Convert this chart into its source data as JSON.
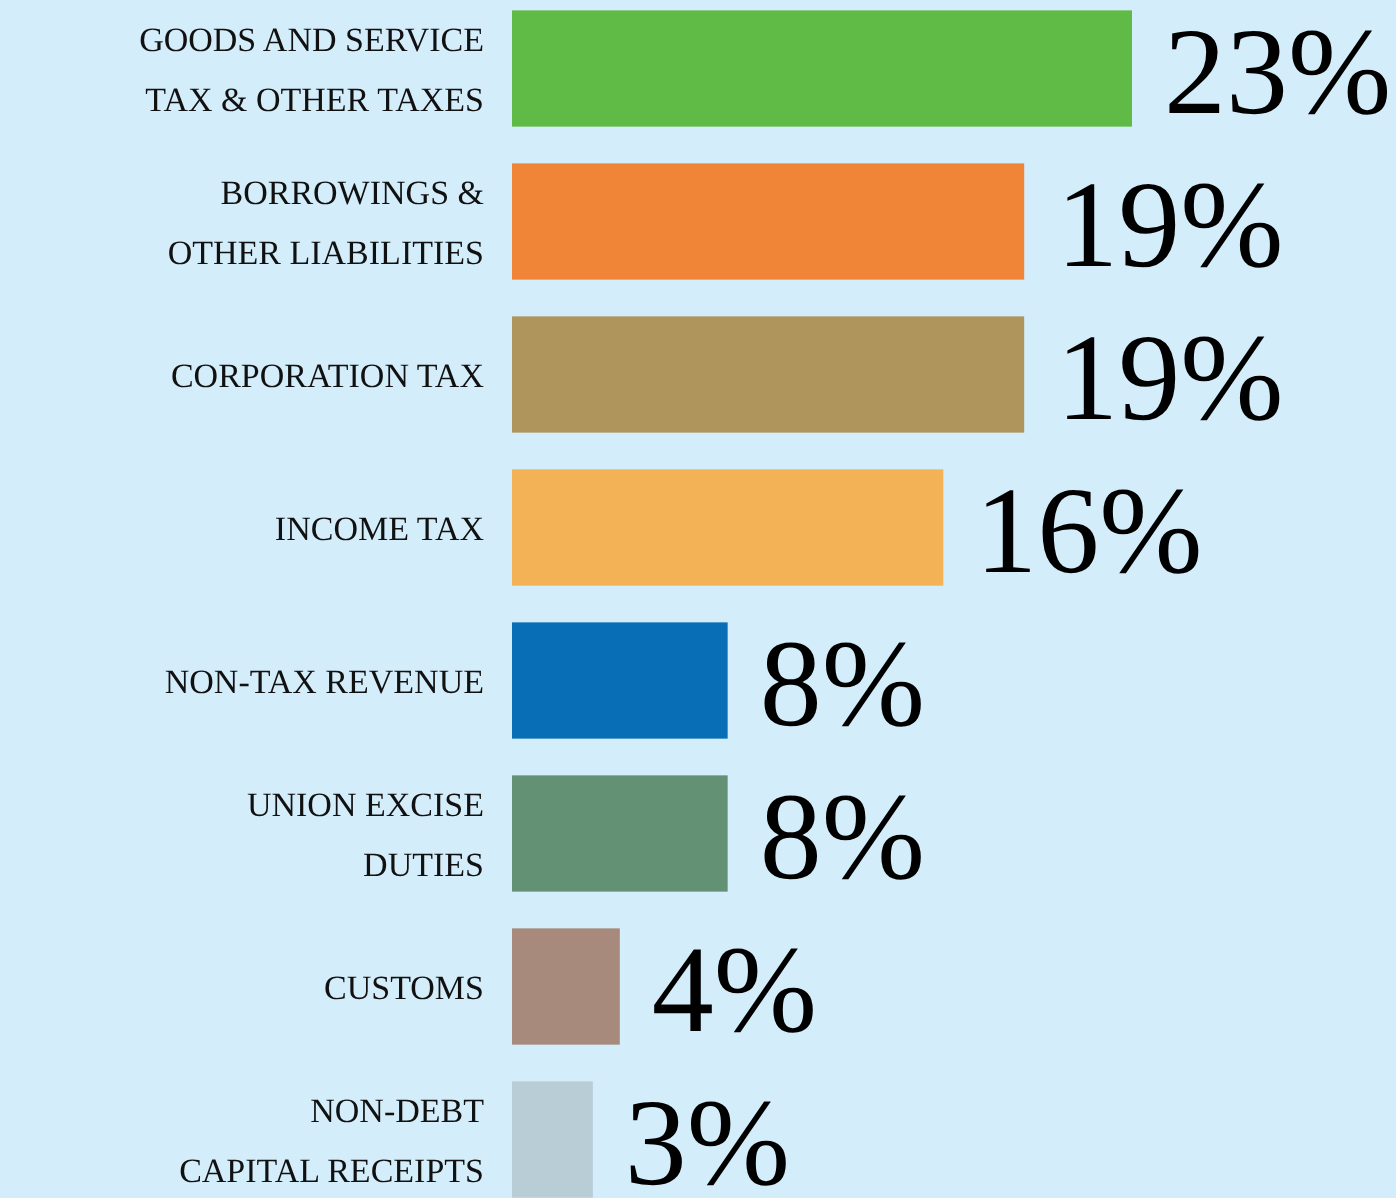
{
  "chart_data": {
    "type": "bar",
    "orientation": "horizontal",
    "categories": [
      "GOODS AND SERVICE\nTAX & OTHER TAXES",
      "BORROWINGS &\nOTHER LIABILITIES",
      "CORPORATION TAX",
      "INCOME TAX",
      "NON-TAX REVENUE",
      "UNION EXCISE\nDUTIES",
      "CUSTOMS",
      "NON-DEBT\nCAPITAL RECEIPTS"
    ],
    "values": [
      23,
      19,
      19,
      16,
      8,
      8,
      4,
      3
    ],
    "value_labels": [
      "23%",
      "19%",
      "19%",
      "16%",
      "8%",
      "8%",
      "4%",
      "3%"
    ],
    "colors": [
      "#5fbb46",
      "#f08537",
      "#af955b",
      "#f3b255",
      "#086fb6",
      "#629173",
      "#a78a7b",
      "#b9cdd6"
    ]
  }
}
